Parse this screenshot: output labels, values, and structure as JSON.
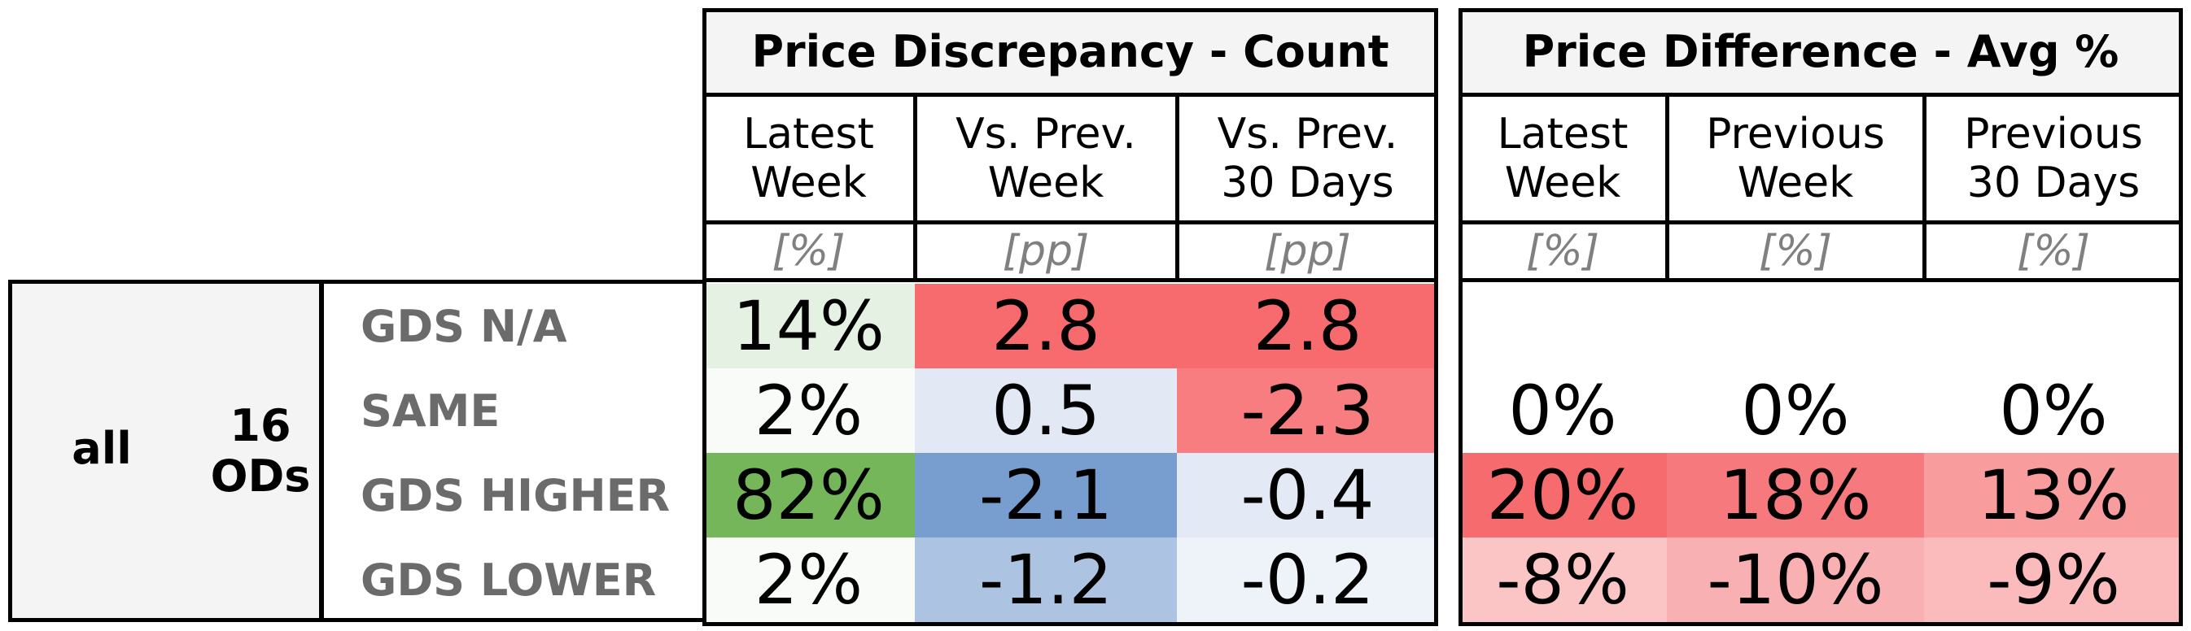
{
  "panels": {
    "count": {
      "title": "Price Discrepancy - Count",
      "columns": [
        {
          "label": "Latest\nWeek",
          "unit": "[%]"
        },
        {
          "label": "Vs. Prev.\nWeek",
          "unit": "[pp]"
        },
        {
          "label": "Vs. Prev.\n30 Days",
          "unit": "[pp]"
        }
      ]
    },
    "avg": {
      "title": "Price Difference - Avg %",
      "columns": [
        {
          "label": "Latest\nWeek",
          "unit": "[%]"
        },
        {
          "label": "Previous\nWeek",
          "unit": "[%]"
        },
        {
          "label": "Previous\n30 Days",
          "unit": "[%]"
        }
      ]
    }
  },
  "group": {
    "scope": "all",
    "ods": "16\nODs"
  },
  "rows": [
    {
      "label": "GDS N/A",
      "count": [
        "14%",
        "2.8",
        "2.8"
      ],
      "count_colors": [
        "#e5f1e2",
        "#f76b6e",
        "#f76b6e"
      ],
      "avg": [
        "",
        "",
        ""
      ],
      "avg_colors": [
        "#ffffff",
        "#ffffff",
        "#ffffff"
      ]
    },
    {
      "label": "SAME",
      "count": [
        "2%",
        "0.5",
        "-2.3"
      ],
      "count_colors": [
        "#f8fbf7",
        "#e2e8f4",
        "#f77d80"
      ],
      "avg": [
        "0%",
        "0%",
        "0%"
      ],
      "avg_colors": [
        "#ffffff",
        "#ffffff",
        "#ffffff"
      ]
    },
    {
      "label": "GDS HIGHER",
      "count": [
        "82%",
        "-2.1",
        "-0.4"
      ],
      "count_colors": [
        "#74b659",
        "#779ecf",
        "#e4eaf5"
      ],
      "avg": [
        "20%",
        "18%",
        "13%"
      ],
      "avg_colors": [
        "#f56b6e",
        "#f67a7d",
        "#f89c9e"
      ]
    },
    {
      "label": "GDS LOWER",
      "count": [
        "2%",
        "-1.2",
        "-0.2"
      ],
      "count_colors": [
        "#f8fbf7",
        "#acc4e2",
        "#eef2f9"
      ],
      "avg": [
        "-8%",
        "-10%",
        "-9%"
      ],
      "avg_colors": [
        "#fbc4c5",
        "#f9b0b2",
        "#fbbabb"
      ]
    }
  ]
}
